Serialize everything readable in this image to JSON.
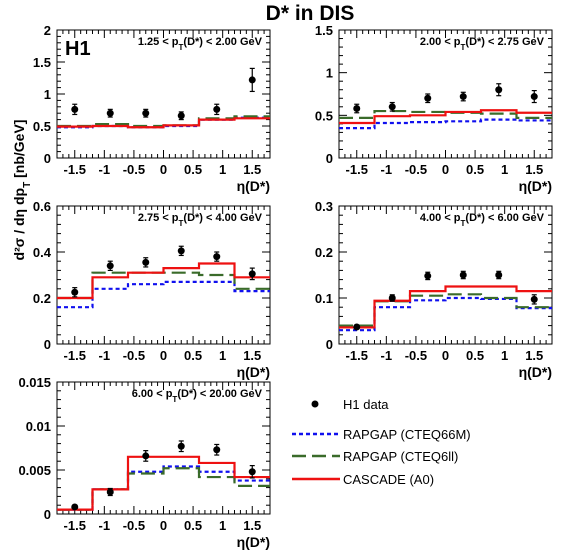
{
  "figure": {
    "title": "D* in DIS",
    "experiment": "H1",
    "y_axis_title": "d²σ / dη dp",
    "y_axis_title_sub": "T",
    "y_axis_title_unit": " [nb/GeV]",
    "x_axis_title": "η(D*)"
  },
  "legend": {
    "data": "H1 data",
    "rapgap_66m": "RAPGAP (CTEQ66M)",
    "rapgap_6ll": "RAPGAP (CTEQ6ll)",
    "cascade": "CASCADE (A0)"
  },
  "colors": {
    "data": "#000000",
    "rapgap_66m": "#1010ee",
    "rapgap_6ll": "#3a6b2a",
    "cascade": "#ee1111"
  },
  "chart_data": [
    {
      "type": "scatter",
      "range_label": "1.25 < p_T(D*) < 2.00 GeV",
      "xlabel": "η(D*)",
      "ylabel": "d²σ / dη dp_T [nb/GeV]",
      "xlim": [
        -1.8,
        1.8
      ],
      "ylim": [
        0,
        2
      ],
      "x_ticks": [
        "-1.5",
        "-1",
        "-0.5",
        "0",
        "0.5",
        "1",
        "1.5"
      ],
      "y_ticks": [
        "0",
        "0.5",
        "1",
        "1.5",
        "2"
      ],
      "y_tick_values": [
        0,
        0.5,
        1,
        1.5,
        2
      ],
      "bin_edges": [
        -1.8,
        -1.2,
        -0.6,
        0.0,
        0.6,
        1.2,
        1.8
      ],
      "data": {
        "x": [
          -1.5,
          -0.9,
          -0.3,
          0.3,
          0.9,
          1.5
        ],
        "y": [
          0.76,
          0.7,
          0.7,
          0.66,
          0.76,
          1.22
        ],
        "err": [
          0.08,
          0.06,
          0.06,
          0.06,
          0.08,
          0.18
        ]
      },
      "rapgap_66m": [
        0.48,
        0.5,
        0.48,
        0.5,
        0.6,
        0.63
      ],
      "rapgap_6ll": [
        0.5,
        0.53,
        0.5,
        0.51,
        0.62,
        0.65
      ],
      "cascade": [
        0.49,
        0.5,
        0.48,
        0.51,
        0.6,
        0.62
      ]
    },
    {
      "type": "scatter",
      "range_label": "2.00 < p_T(D*) < 2.75 GeV",
      "xlabel": "η(D*)",
      "xlim": [
        -1.8,
        1.8
      ],
      "ylim": [
        0,
        1.5
      ],
      "x_ticks": [
        "-1.5",
        "-1",
        "-0.5",
        "0",
        "0.5",
        "1",
        "1.5"
      ],
      "y_ticks": [
        "0",
        "0.5",
        "1",
        "1.5"
      ],
      "y_tick_values": [
        0,
        0.5,
        1,
        1.5
      ],
      "bin_edges": [
        -1.8,
        -1.2,
        -0.6,
        0.0,
        0.6,
        1.2,
        1.8
      ],
      "data": {
        "x": [
          -1.5,
          -0.9,
          -0.3,
          0.3,
          0.9,
          1.5
        ],
        "y": [
          0.58,
          0.6,
          0.7,
          0.72,
          0.8,
          0.72
        ],
        "err": [
          0.05,
          0.05,
          0.05,
          0.05,
          0.07,
          0.07
        ]
      },
      "rapgap_66m": [
        0.35,
        0.41,
        0.42,
        0.43,
        0.45,
        0.44
      ],
      "rapgap_6ll": [
        0.47,
        0.55,
        0.54,
        0.53,
        0.52,
        0.47
      ],
      "cascade": [
        0.41,
        0.49,
        0.5,
        0.54,
        0.56,
        0.53
      ]
    },
    {
      "type": "scatter",
      "range_label": "2.75 < p_T(D*) < 4.00 GeV",
      "xlabel": "η(D*)",
      "xlim": [
        -1.8,
        1.8
      ],
      "ylim": [
        0,
        0.6
      ],
      "x_ticks": [
        "-1.5",
        "-1",
        "-0.5",
        "0",
        "0.5",
        "1",
        "1.5"
      ],
      "y_ticks": [
        "0",
        "0.2",
        "0.4",
        "0.6"
      ],
      "y_tick_values": [
        0,
        0.2,
        0.4,
        0.6
      ],
      "bin_edges": [
        -1.8,
        -1.2,
        -0.6,
        0.0,
        0.6,
        1.2,
        1.8
      ],
      "data": {
        "x": [
          -1.5,
          -0.9,
          -0.3,
          0.3,
          0.9,
          1.5
        ],
        "y": [
          0.225,
          0.34,
          0.355,
          0.405,
          0.38,
          0.305
        ],
        "err": [
          0.02,
          0.02,
          0.02,
          0.02,
          0.02,
          0.025
        ]
      },
      "rapgap_66m": [
        0.16,
        0.24,
        0.26,
        0.27,
        0.27,
        0.23
      ],
      "rapgap_6ll": [
        0.2,
        0.31,
        0.31,
        0.31,
        0.3,
        0.24
      ],
      "cascade": [
        0.2,
        0.29,
        0.31,
        0.33,
        0.35,
        0.29
      ]
    },
    {
      "type": "scatter",
      "range_label": "4.00 < p_T(D*) < 6.00 GeV",
      "xlabel": "η(D*)",
      "xlim": [
        -1.8,
        1.8
      ],
      "ylim": [
        0,
        0.3
      ],
      "x_ticks": [
        "-1.5",
        "-1",
        "-0.5",
        "0",
        "0.5",
        "1",
        "1.5"
      ],
      "y_ticks": [
        "0",
        "0.1",
        "0.2",
        "0.3"
      ],
      "y_tick_values": [
        0,
        0.1,
        0.2,
        0.3
      ],
      "bin_edges": [
        -1.8,
        -1.2,
        -0.6,
        0.0,
        0.6,
        1.2,
        1.8
      ],
      "data": {
        "x": [
          -1.5,
          -0.9,
          -0.3,
          0.3,
          0.9,
          1.5
        ],
        "y": [
          0.037,
          0.1,
          0.148,
          0.15,
          0.15,
          0.097
        ],
        "err": [
          0.004,
          0.007,
          0.008,
          0.008,
          0.008,
          0.01
        ]
      },
      "rapgap_66m": [
        0.03,
        0.08,
        0.095,
        0.1,
        0.098,
        0.078
      ],
      "rapgap_6ll": [
        0.04,
        0.093,
        0.105,
        0.108,
        0.1,
        0.08
      ],
      "cascade": [
        0.036,
        0.094,
        0.115,
        0.125,
        0.125,
        0.115
      ]
    },
    {
      "type": "scatter",
      "range_label": "6.00 < p_T(D*) < 20.00 GeV",
      "xlabel": "η(D*)",
      "xlim": [
        -1.8,
        1.8
      ],
      "ylim": [
        0,
        0.015
      ],
      "x_ticks": [
        "-1.5",
        "-1",
        "-0.5",
        "0",
        "0.5",
        "1",
        "1.5"
      ],
      "y_ticks": [
        "0",
        "0.005",
        "0.01",
        "0.015"
      ],
      "y_tick_values": [
        0,
        0.005,
        0.01,
        0.015
      ],
      "bin_edges": [
        -1.8,
        -1.2,
        -0.6,
        0.0,
        0.6,
        1.2,
        1.8
      ],
      "data": {
        "x": [
          -1.5,
          -0.9,
          -0.3,
          0.3,
          0.9,
          1.5
        ],
        "y": [
          0.0008,
          0.0025,
          0.0066,
          0.0077,
          0.0073,
          0.0048
        ],
        "err": [
          0.0002,
          0.0004,
          0.0006,
          0.0006,
          0.0006,
          0.0007
        ]
      },
      "rapgap_66m": [
        0.0005,
        0.0028,
        0.0048,
        0.0054,
        0.0048,
        0.0038
      ],
      "rapgap_6ll": [
        0.0005,
        0.0028,
        0.0046,
        0.0052,
        0.0042,
        0.0032
      ],
      "cascade": [
        0.0005,
        0.0028,
        0.0065,
        0.0065,
        0.0058,
        0.0042
      ]
    }
  ]
}
